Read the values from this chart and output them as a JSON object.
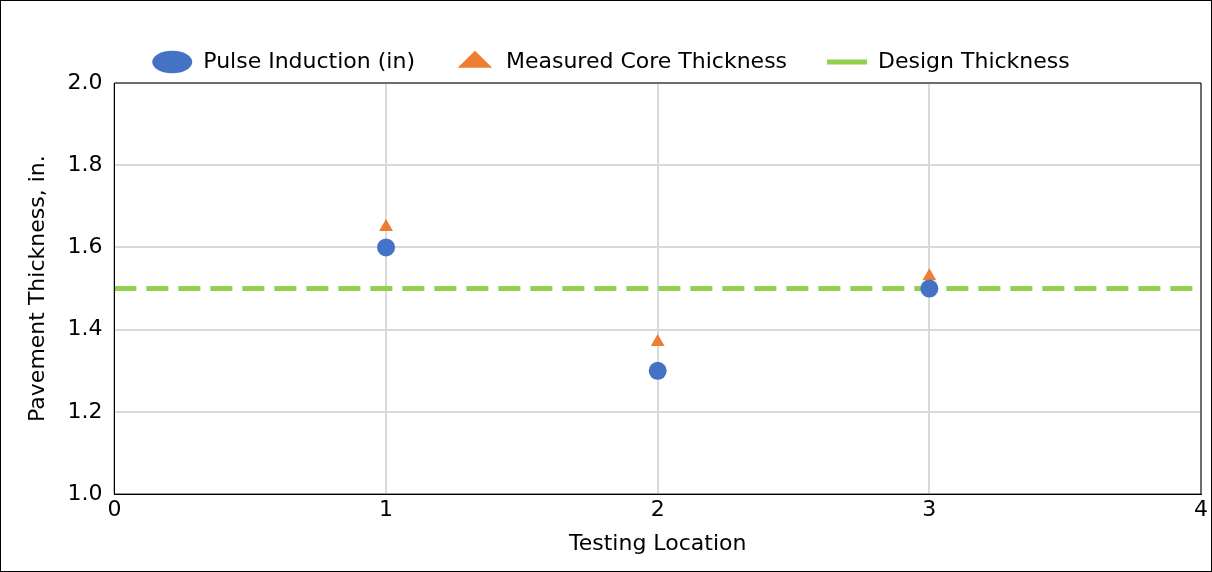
{
  "chart_data": {
    "type": "scatter",
    "xlabel": "Testing Location",
    "ylabel": "Pavement Thickness, in.",
    "xlim": [
      0,
      4
    ],
    "xticks": [
      0,
      1,
      2,
      3,
      4
    ],
    "ylim": [
      1.0,
      2.0
    ],
    "yticks": [
      {
        "value": 1.0,
        "label": "1.0"
      },
      {
        "value": 1.2,
        "label": "1.2"
      },
      {
        "value": 1.4,
        "label": "1.4"
      },
      {
        "value": 1.6,
        "label": "1.6"
      },
      {
        "value": 1.8,
        "label": "1.8"
      },
      {
        "value": 2.0,
        "label": "2.0"
      }
    ],
    "grid": true,
    "legend": "top",
    "series": [
      {
        "name": "Pulse Induction (in)",
        "type": "scatter",
        "marker": "circle",
        "color": "#4472c4",
        "x": [
          1,
          2,
          3
        ],
        "values": [
          1.6,
          1.3,
          1.5
        ]
      },
      {
        "name": "Measured Core Thickness",
        "type": "scatter",
        "marker": "triangle",
        "color": "#ed7d31",
        "x": [
          1,
          2,
          3
        ],
        "values": [
          1.65,
          1.37,
          1.53
        ]
      },
      {
        "name": "Design Thickness",
        "type": "line",
        "marker": "none",
        "line_style": "dashed",
        "color": "#92d050",
        "x": [
          0,
          4
        ],
        "values": [
          1.5,
          1.5
        ]
      }
    ]
  }
}
